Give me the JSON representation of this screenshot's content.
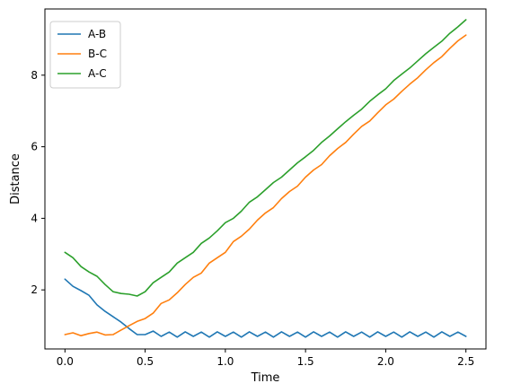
{
  "chart_data": {
    "type": "line",
    "title": "",
    "xlabel": "Time",
    "ylabel": "Distance",
    "xlim": [
      -0.125,
      2.625
    ],
    "ylim": [
      0.35,
      9.85
    ],
    "x_ticks": [
      0.0,
      0.5,
      1.0,
      1.5,
      2.0,
      2.5
    ],
    "x_tick_labels": [
      "0.0",
      "0.5",
      "1.0",
      "1.5",
      "2.0",
      "2.5"
    ],
    "y_ticks": [
      2,
      4,
      6,
      8
    ],
    "y_tick_labels": [
      "2",
      "4",
      "6",
      "8"
    ],
    "grid": false,
    "legend": "top-left",
    "series": [
      {
        "name": "A-B",
        "color": "#1f77b4",
        "points": [
          [
            0.0,
            2.3
          ],
          [
            0.05,
            2.1
          ],
          [
            0.1,
            1.98
          ],
          [
            0.15,
            1.85
          ],
          [
            0.2,
            1.58
          ],
          [
            0.25,
            1.4
          ],
          [
            0.3,
            1.25
          ],
          [
            0.35,
            1.1
          ],
          [
            0.4,
            0.92
          ],
          [
            0.45,
            0.75
          ],
          [
            0.5,
            0.75
          ],
          [
            0.55,
            0.85
          ],
          [
            0.6,
            0.7
          ],
          [
            0.65,
            0.82
          ],
          [
            0.7,
            0.68
          ],
          [
            0.75,
            0.83
          ],
          [
            0.8,
            0.7
          ],
          [
            0.85,
            0.82
          ],
          [
            0.9,
            0.68
          ],
          [
            0.95,
            0.83
          ],
          [
            1.0,
            0.7
          ],
          [
            1.05,
            0.82
          ],
          [
            1.1,
            0.68
          ],
          [
            1.15,
            0.83
          ],
          [
            1.2,
            0.7
          ],
          [
            1.25,
            0.82
          ],
          [
            1.3,
            0.68
          ],
          [
            1.35,
            0.83
          ],
          [
            1.4,
            0.7
          ],
          [
            1.45,
            0.82
          ],
          [
            1.5,
            0.68
          ],
          [
            1.55,
            0.83
          ],
          [
            1.6,
            0.7
          ],
          [
            1.65,
            0.82
          ],
          [
            1.7,
            0.68
          ],
          [
            1.75,
            0.83
          ],
          [
            1.8,
            0.7
          ],
          [
            1.85,
            0.82
          ],
          [
            1.9,
            0.68
          ],
          [
            1.95,
            0.83
          ],
          [
            2.0,
            0.7
          ],
          [
            2.05,
            0.82
          ],
          [
            2.1,
            0.68
          ],
          [
            2.15,
            0.83
          ],
          [
            2.2,
            0.7
          ],
          [
            2.25,
            0.82
          ],
          [
            2.3,
            0.68
          ],
          [
            2.35,
            0.83
          ],
          [
            2.4,
            0.7
          ],
          [
            2.45,
            0.82
          ],
          [
            2.5,
            0.7
          ]
        ]
      },
      {
        "name": "B-C",
        "color": "#ff7f0e",
        "points": [
          [
            0.0,
            0.75
          ],
          [
            0.05,
            0.8
          ],
          [
            0.1,
            0.72
          ],
          [
            0.15,
            0.78
          ],
          [
            0.2,
            0.82
          ],
          [
            0.25,
            0.74
          ],
          [
            0.3,
            0.75
          ],
          [
            0.35,
            0.88
          ],
          [
            0.4,
            1.0
          ],
          [
            0.45,
            1.12
          ],
          [
            0.5,
            1.2
          ],
          [
            0.55,
            1.35
          ],
          [
            0.6,
            1.62
          ],
          [
            0.65,
            1.72
          ],
          [
            0.7,
            1.92
          ],
          [
            0.75,
            2.15
          ],
          [
            0.8,
            2.35
          ],
          [
            0.85,
            2.47
          ],
          [
            0.9,
            2.75
          ],
          [
            0.95,
            2.9
          ],
          [
            1.0,
            3.05
          ],
          [
            1.05,
            3.35
          ],
          [
            1.1,
            3.5
          ],
          [
            1.15,
            3.7
          ],
          [
            1.2,
            3.95
          ],
          [
            1.25,
            4.15
          ],
          [
            1.3,
            4.3
          ],
          [
            1.35,
            4.55
          ],
          [
            1.4,
            4.75
          ],
          [
            1.45,
            4.9
          ],
          [
            1.5,
            5.15
          ],
          [
            1.55,
            5.35
          ],
          [
            1.6,
            5.5
          ],
          [
            1.65,
            5.75
          ],
          [
            1.7,
            5.95
          ],
          [
            1.75,
            6.12
          ],
          [
            1.8,
            6.35
          ],
          [
            1.85,
            6.57
          ],
          [
            1.9,
            6.72
          ],
          [
            1.95,
            6.95
          ],
          [
            2.0,
            7.17
          ],
          [
            2.05,
            7.33
          ],
          [
            2.1,
            7.55
          ],
          [
            2.15,
            7.75
          ],
          [
            2.2,
            7.93
          ],
          [
            2.25,
            8.15
          ],
          [
            2.3,
            8.35
          ],
          [
            2.35,
            8.52
          ],
          [
            2.4,
            8.75
          ],
          [
            2.45,
            8.96
          ],
          [
            2.5,
            9.12
          ]
        ]
      },
      {
        "name": "A-C",
        "color": "#2ca02c",
        "points": [
          [
            0.0,
            3.05
          ],
          [
            0.05,
            2.9
          ],
          [
            0.1,
            2.65
          ],
          [
            0.15,
            2.5
          ],
          [
            0.2,
            2.38
          ],
          [
            0.25,
            2.15
          ],
          [
            0.3,
            1.95
          ],
          [
            0.35,
            1.9
          ],
          [
            0.4,
            1.88
          ],
          [
            0.45,
            1.83
          ],
          [
            0.5,
            1.95
          ],
          [
            0.55,
            2.2
          ],
          [
            0.6,
            2.35
          ],
          [
            0.65,
            2.5
          ],
          [
            0.7,
            2.75
          ],
          [
            0.75,
            2.9
          ],
          [
            0.8,
            3.05
          ],
          [
            0.85,
            3.3
          ],
          [
            0.9,
            3.45
          ],
          [
            0.95,
            3.65
          ],
          [
            1.0,
            3.88
          ],
          [
            1.05,
            4.0
          ],
          [
            1.1,
            4.2
          ],
          [
            1.15,
            4.45
          ],
          [
            1.2,
            4.6
          ],
          [
            1.25,
            4.8
          ],
          [
            1.3,
            5.0
          ],
          [
            1.35,
            5.15
          ],
          [
            1.4,
            5.35
          ],
          [
            1.45,
            5.55
          ],
          [
            1.5,
            5.72
          ],
          [
            1.55,
            5.9
          ],
          [
            1.6,
            6.12
          ],
          [
            1.65,
            6.3
          ],
          [
            1.7,
            6.5
          ],
          [
            1.75,
            6.7
          ],
          [
            1.8,
            6.88
          ],
          [
            1.85,
            7.05
          ],
          [
            1.9,
            7.27
          ],
          [
            1.95,
            7.45
          ],
          [
            2.0,
            7.62
          ],
          [
            2.05,
            7.85
          ],
          [
            2.1,
            8.03
          ],
          [
            2.15,
            8.2
          ],
          [
            2.2,
            8.4
          ],
          [
            2.25,
            8.6
          ],
          [
            2.3,
            8.78
          ],
          [
            2.35,
            8.95
          ],
          [
            2.4,
            9.17
          ],
          [
            2.45,
            9.35
          ],
          [
            2.5,
            9.55
          ]
        ]
      }
    ]
  }
}
